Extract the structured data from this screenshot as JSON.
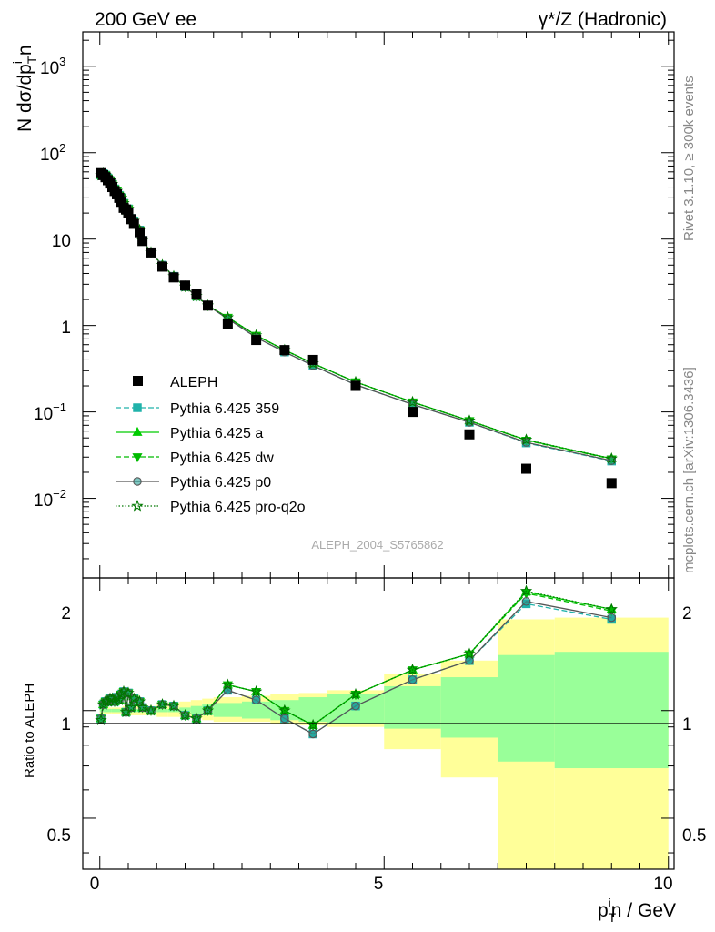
{
  "header": {
    "left": "200 GeV ee",
    "right_main": "γ*/Z (Hadronic)"
  },
  "side_text": {
    "rivet": "Rivet 3.1.10, ≥ 300k events",
    "mcplots": "mcplots.cern.ch [arXiv:1306.3436]"
  },
  "watermark": "ALEPH_2004_S5765862",
  "axes": {
    "ylabel_main": "N dσ/dp_T^i n",
    "ylabel_ratio": "Ratio to ALEPH",
    "xlabel": "p_T^i n / GeV",
    "main_ticks": [
      "10^-2",
      "10^-1",
      "1",
      "10",
      "10^2",
      "10^3"
    ],
    "ratio_ticks": [
      "0.5",
      "1",
      "2"
    ],
    "x_ticks": [
      "0",
      "5",
      "10"
    ]
  },
  "chart_data": {
    "type": "line",
    "x_range": [
      -0.3,
      10.1
    ],
    "main_y_range": [
      0.0012,
      2500
    ],
    "main_y_scale": "log",
    "ratio_y_range": [
      0.36,
      2.35
    ],
    "ratio_y_scale": "log",
    "legend_position": "bottom-left",
    "data": {
      "name": "ALEPH",
      "x": [
        0.02,
        0.06,
        0.1,
        0.14,
        0.18,
        0.22,
        0.26,
        0.3,
        0.34,
        0.38,
        0.42,
        0.46,
        0.5,
        0.55,
        0.6,
        0.7,
        0.75,
        0.9,
        1.1,
        1.3,
        1.5,
        1.7,
        1.9,
        2.25,
        2.75,
        3.25,
        3.75,
        4.5,
        5.5,
        6.5,
        7.5,
        9.0
      ],
      "y": [
        58,
        55,
        52,
        48,
        44,
        40,
        36,
        33,
        30,
        27,
        23,
        22,
        20,
        17,
        15,
        12,
        9.5,
        7.0,
        4.8,
        3.6,
        2.9,
        2.3,
        1.7,
        1.05,
        0.68,
        0.52,
        0.4,
        0.2,
        0.1,
        0.055,
        0.022,
        0.015
      ]
    },
    "bands": {
      "x_edges": [
        0.0,
        0.2,
        0.4,
        0.6,
        0.8,
        1.0,
        1.2,
        1.4,
        1.6,
        1.8,
        2.0,
        2.5,
        3.0,
        3.5,
        4.0,
        5.0,
        6.0,
        7.0,
        8.0,
        10.0
      ],
      "stat_lo": [
        0.99,
        0.99,
        0.99,
        0.99,
        0.99,
        0.99,
        0.99,
        0.99,
        0.98,
        0.97,
        0.96,
        0.95,
        0.94,
        0.93,
        0.92,
        0.89,
        0.84,
        0.72,
        0.69
      ],
      "stat_hi": [
        1.01,
        1.01,
        1.01,
        1.01,
        1.01,
        1.01,
        1.01,
        1.02,
        1.03,
        1.04,
        1.05,
        1.06,
        1.07,
        1.09,
        1.11,
        1.17,
        1.24,
        1.43,
        1.46
      ],
      "tot_lo": [
        0.98,
        0.98,
        0.97,
        0.97,
        0.97,
        0.96,
        0.96,
        0.96,
        0.95,
        0.94,
        0.93,
        0.93,
        0.92,
        0.91,
        0.9,
        0.78,
        0.65,
        0.35,
        0.35
      ],
      "tot_hi": [
        1.02,
        1.02,
        1.03,
        1.03,
        1.03,
        1.04,
        1.05,
        1.06,
        1.07,
        1.08,
        1.09,
        1.1,
        1.11,
        1.12,
        1.14,
        1.27,
        1.38,
        1.8,
        1.82
      ]
    },
    "series": [
      {
        "name": "Pythia 6.425 359",
        "color": "#20b2aa",
        "dash": "6,3",
        "marker": "square",
        "filled": true,
        "ratio": [
          0.95,
          1.04,
          1.06,
          1.06,
          1.08,
          1.08,
          1.06,
          1.09,
          1.07,
          1.11,
          1.13,
          0.99,
          1.12,
          1.02,
          1.08,
          1.06,
          1.02,
          1.0,
          1.04,
          1.03,
          0.97,
          0.95,
          1.0,
          1.14,
          1.07,
          0.95,
          0.86,
          1.03,
          1.22,
          1.38,
          1.99,
          1.8
        ]
      },
      {
        "name": "Pythia 6.425 a",
        "color": "#00cc00",
        "dash": "",
        "marker": "triangle-up",
        "filled": true,
        "ratio": [
          0.95,
          1.04,
          1.06,
          1.06,
          1.08,
          1.08,
          1.06,
          1.09,
          1.07,
          1.11,
          1.13,
          0.99,
          1.12,
          1.02,
          1.08,
          1.06,
          1.02,
          1.0,
          1.04,
          1.03,
          0.97,
          0.95,
          1.0,
          1.18,
          1.13,
          1.0,
          0.91,
          1.11,
          1.3,
          1.44,
          2.15,
          1.92
        ]
      },
      {
        "name": "Pythia 6.425 dw",
        "color": "#00bb00",
        "dash": "6,3",
        "marker": "triangle-down",
        "filled": true,
        "ratio": [
          0.95,
          1.04,
          1.06,
          1.06,
          1.08,
          1.08,
          1.06,
          1.09,
          1.07,
          1.11,
          1.13,
          0.99,
          1.12,
          1.02,
          1.08,
          1.06,
          1.02,
          1.0,
          1.04,
          1.03,
          0.97,
          0.95,
          1.0,
          1.18,
          1.13,
          1.0,
          0.91,
          1.11,
          1.3,
          1.44,
          2.13,
          1.9
        ]
      },
      {
        "name": "Pythia 6.425 p0",
        "color": "#555555",
        "dash": "",
        "marker": "circle",
        "filled": false,
        "ratio": [
          0.95,
          1.04,
          1.06,
          1.06,
          1.08,
          1.08,
          1.06,
          1.09,
          1.07,
          1.11,
          1.13,
          0.99,
          1.12,
          1.02,
          1.08,
          1.06,
          1.02,
          1.0,
          1.04,
          1.03,
          0.97,
          0.95,
          1.0,
          1.14,
          1.07,
          0.95,
          0.86,
          1.03,
          1.22,
          1.38,
          2.02,
          1.82
        ]
      },
      {
        "name": "Pythia 6.425 pro-q2o",
        "color": "#007700",
        "dash": "1.5,2",
        "marker": "star",
        "filled": false,
        "ratio": [
          0.94,
          1.04,
          1.06,
          1.06,
          1.08,
          1.08,
          1.06,
          1.09,
          1.07,
          1.11,
          1.13,
          0.99,
          1.12,
          1.02,
          1.08,
          1.06,
          1.02,
          1.0,
          1.04,
          1.03,
          0.97,
          0.95,
          1.0,
          1.18,
          1.13,
          1.0,
          0.91,
          1.11,
          1.3,
          1.44,
          2.16,
          1.92
        ]
      }
    ]
  }
}
